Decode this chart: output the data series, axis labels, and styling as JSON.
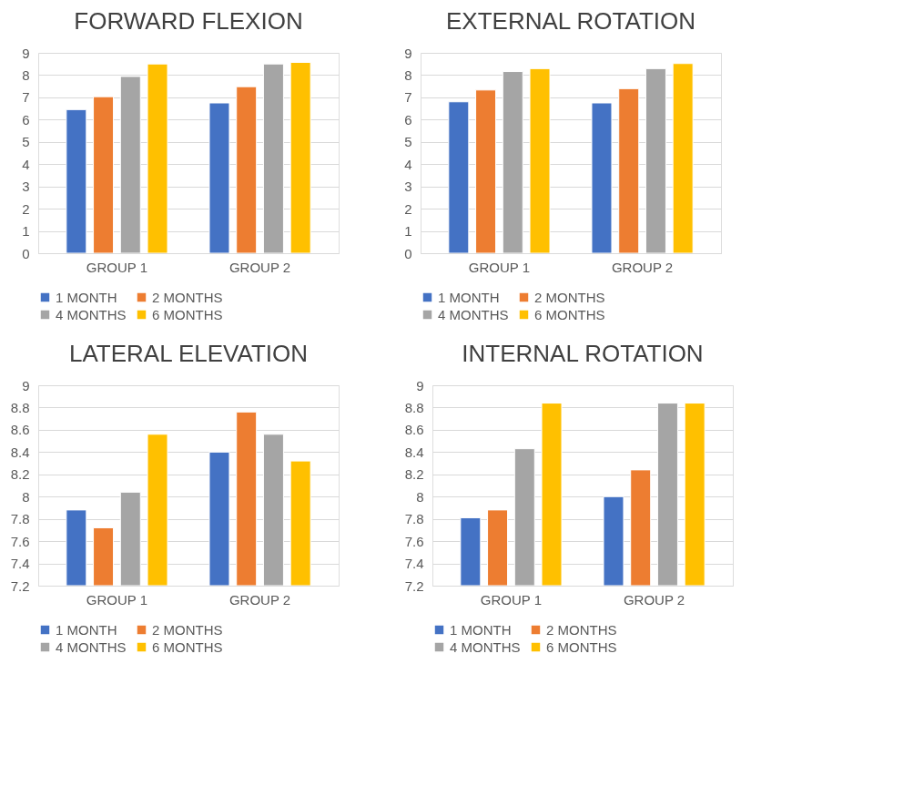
{
  "chart_data": [
    {
      "type": "bar",
      "title": "FORWARD FLEXION",
      "categories": [
        "GROUP 1",
        "GROUP 2"
      ],
      "ylim": [
        0,
        9
      ],
      "yticks": [
        0,
        1,
        2,
        3,
        4,
        5,
        6,
        7,
        8,
        9
      ],
      "grid": "y",
      "legend": "bottom",
      "series": [
        {
          "name": "1 MONTH",
          "color": "#4472c4",
          "values": [
            6.45,
            6.75
          ]
        },
        {
          "name": "2 MONTHS",
          "color": "#ed7d31",
          "values": [
            7.03,
            7.48
          ]
        },
        {
          "name": "4 MONTHS",
          "color": "#a5a5a5",
          "values": [
            7.94,
            8.5
          ]
        },
        {
          "name": "6 MONTHS",
          "color": "#ffc000",
          "values": [
            8.5,
            8.57
          ]
        }
      ]
    },
    {
      "type": "bar",
      "title": "EXTERNAL ROTATION",
      "categories": [
        "GROUP 1",
        "GROUP 2"
      ],
      "ylim": [
        0,
        9
      ],
      "yticks": [
        0,
        1,
        2,
        3,
        4,
        5,
        6,
        7,
        8,
        9
      ],
      "grid": "y",
      "legend": "bottom",
      "series": [
        {
          "name": "1 MONTH",
          "color": "#4472c4",
          "values": [
            6.8,
            6.75
          ]
        },
        {
          "name": "2 MONTHS",
          "color": "#ed7d31",
          "values": [
            7.33,
            7.39
          ]
        },
        {
          "name": "4 MONTHS",
          "color": "#a5a5a5",
          "values": [
            8.16,
            8.29
          ]
        },
        {
          "name": "6 MONTHS",
          "color": "#ffc000",
          "values": [
            8.29,
            8.52
          ]
        }
      ]
    },
    {
      "type": "bar",
      "title": "LATERAL ELEVATION",
      "categories": [
        "GROUP 1",
        "GROUP 2"
      ],
      "ylim": [
        7.2,
        9
      ],
      "yticks": [
        7.2,
        7.4,
        7.6,
        7.8,
        8,
        8.2,
        8.4,
        8.6,
        8.8,
        9
      ],
      "grid": "y",
      "legend": "bottom",
      "series": [
        {
          "name": "1 MONTH",
          "color": "#4472c4",
          "values": [
            7.88,
            8.4
          ]
        },
        {
          "name": "2 MONTHS",
          "color": "#ed7d31",
          "values": [
            7.72,
            8.76
          ]
        },
        {
          "name": "4 MONTHS",
          "color": "#a5a5a5",
          "values": [
            8.04,
            8.56
          ]
        },
        {
          "name": "6 MONTHS",
          "color": "#ffc000",
          "values": [
            8.56,
            8.32
          ]
        }
      ]
    },
    {
      "type": "bar",
      "title": "INTERNAL ROTATION",
      "categories": [
        "GROUP 1",
        "GROUP 2"
      ],
      "ylim": [
        7.2,
        9
      ],
      "yticks": [
        7.2,
        7.4,
        7.6,
        7.8,
        8,
        8.2,
        8.4,
        8.6,
        8.8,
        9
      ],
      "grid": "y",
      "legend": "bottom",
      "series": [
        {
          "name": "1 MONTH",
          "color": "#4472c4",
          "values": [
            7.81,
            8.0
          ]
        },
        {
          "name": "2 MONTHS",
          "color": "#ed7d31",
          "values": [
            7.88,
            8.24
          ]
        },
        {
          "name": "4 MONTHS",
          "color": "#a5a5a5",
          "values": [
            8.43,
            8.84
          ]
        },
        {
          "name": "6 MONTHS",
          "color": "#ffc000",
          "values": [
            8.84,
            8.84
          ]
        }
      ]
    }
  ]
}
